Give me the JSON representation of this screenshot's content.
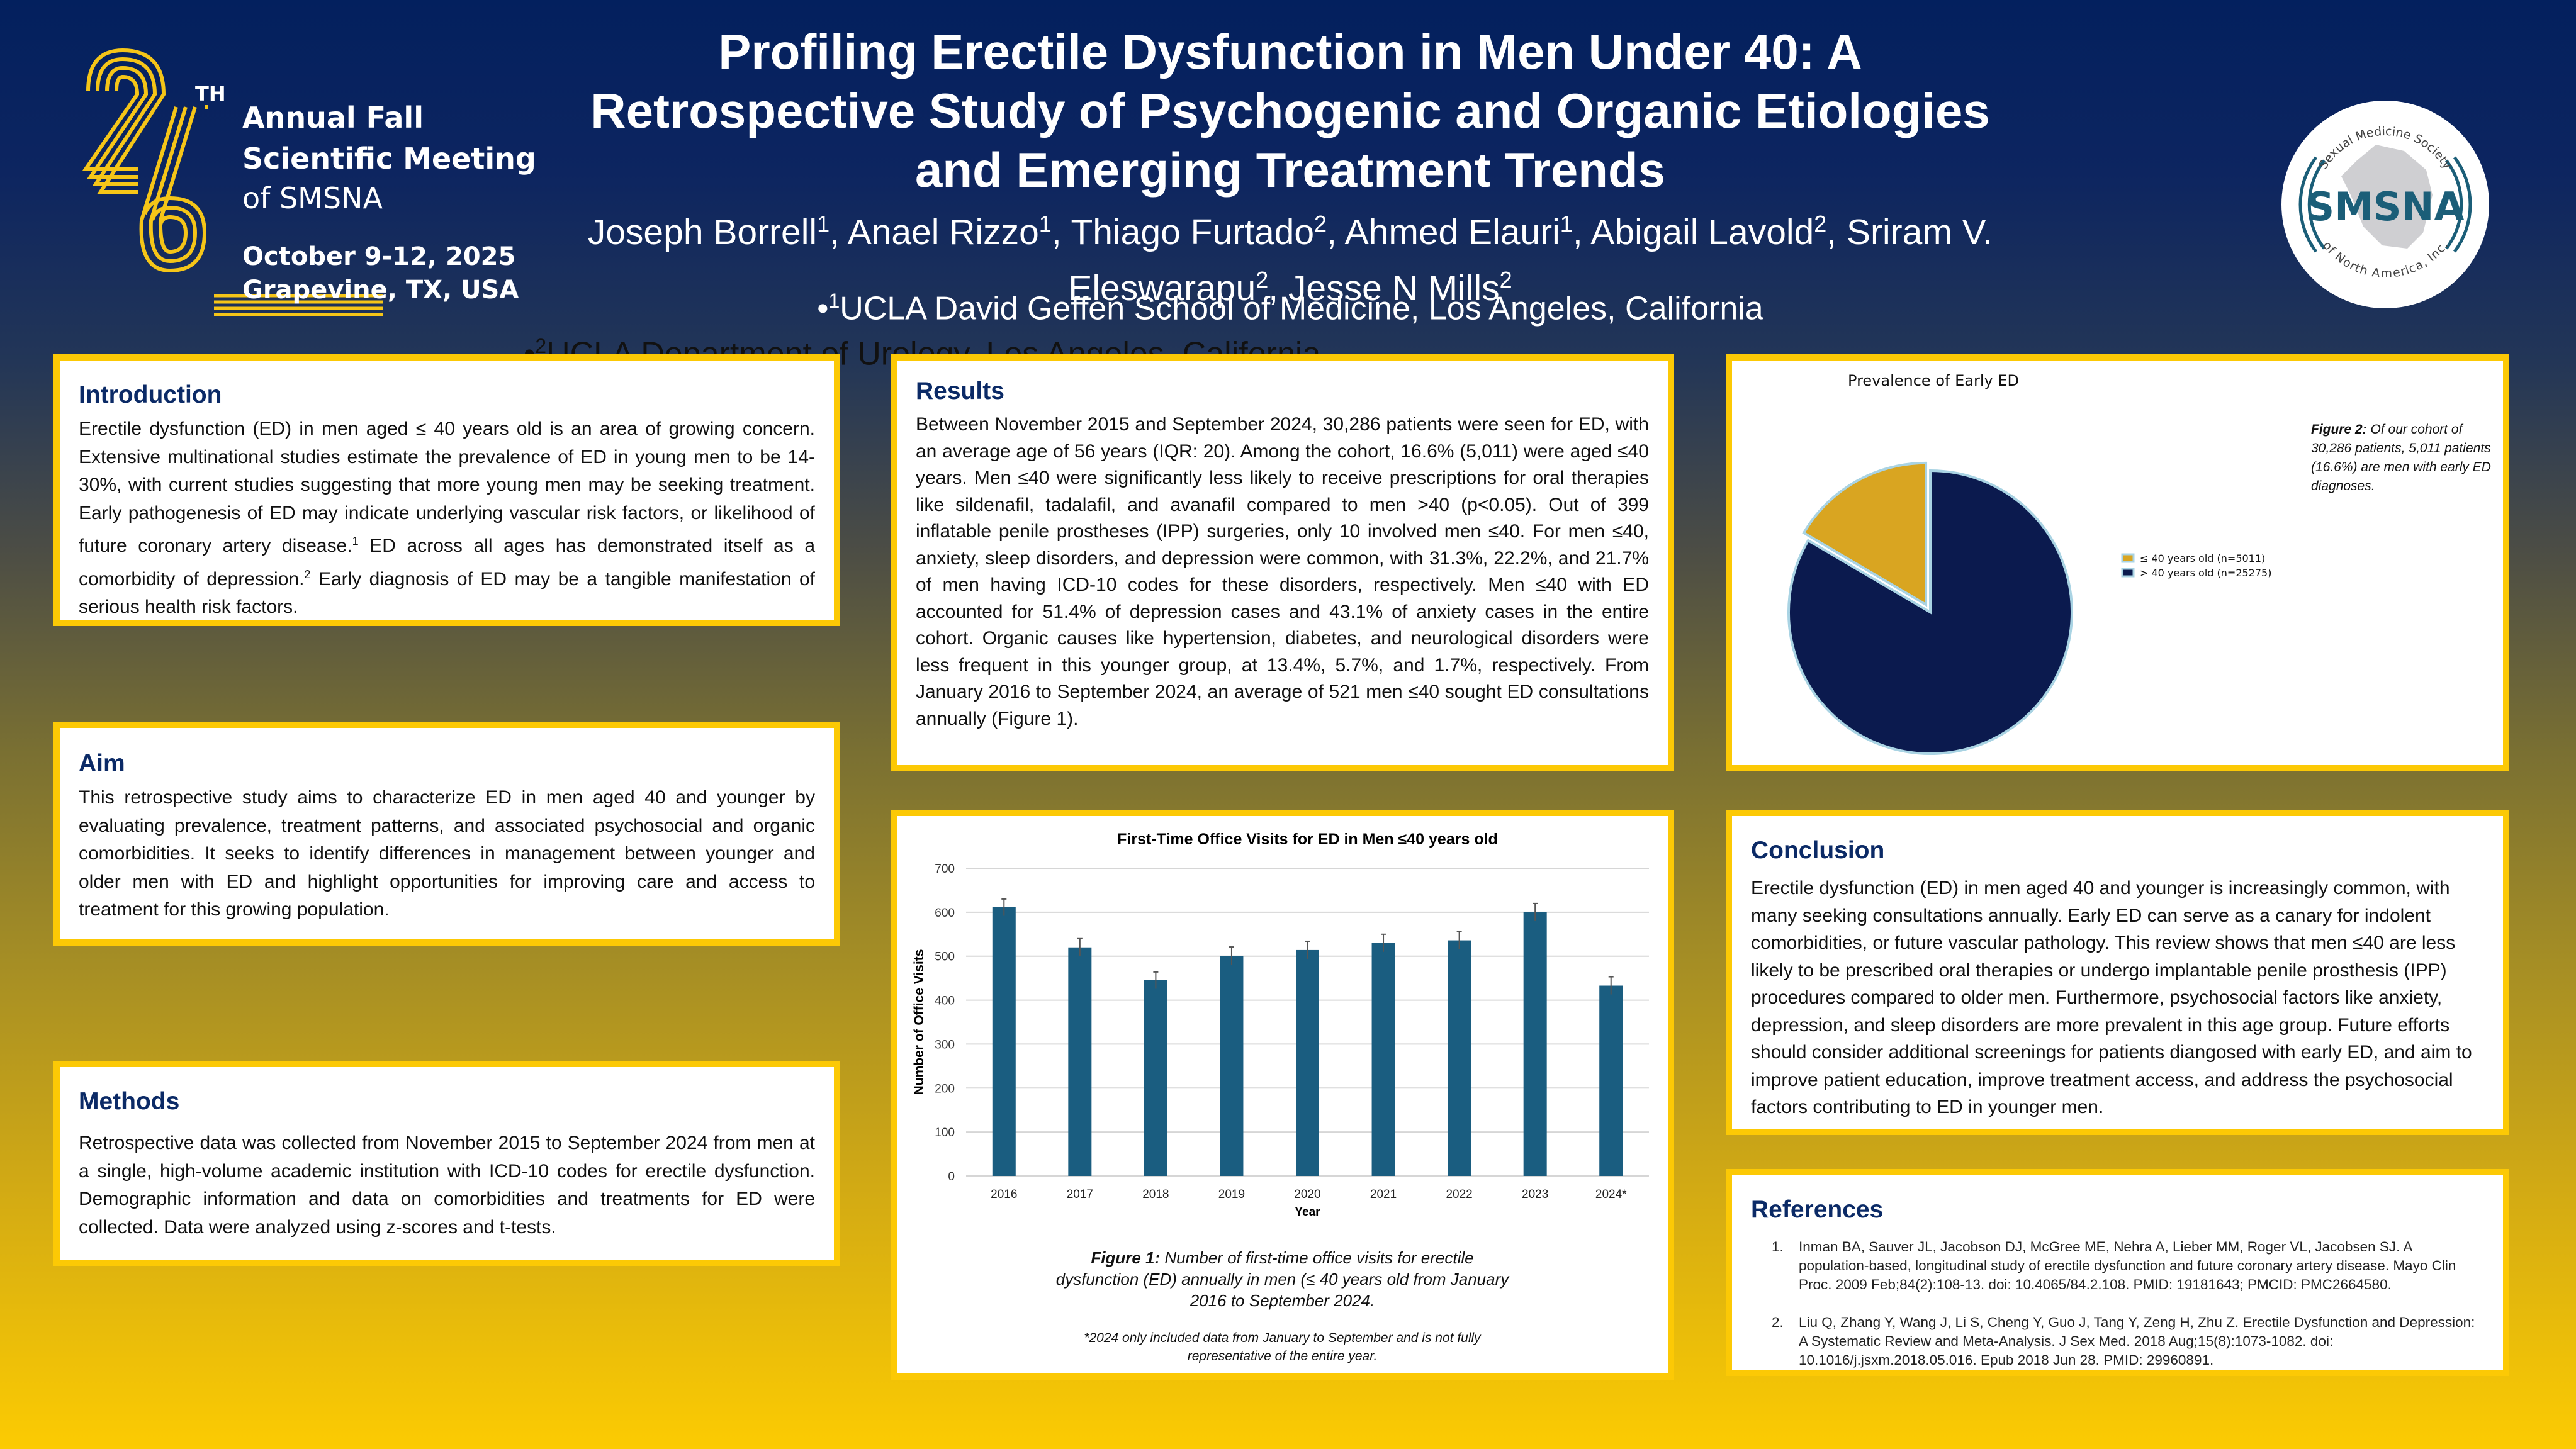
{
  "conference": {
    "number": "26",
    "ordinal_suffix": "TH",
    "line1": "Annual Fall",
    "line2": "Scientific Meeting",
    "line3": "of SMSNA",
    "dates": "October 9-12, 2025",
    "location": "Grapevine, TX, USA",
    "accent_color": "#f5c518"
  },
  "header": {
    "title": "Profiling Erectile Dysfunction in Men Under 40: A Retrospective Study of Psychogenic and Organic Etiologies and Emerging Treatment Trends",
    "authors": [
      {
        "name": "Joseph Borrell",
        "aff": "1"
      },
      {
        "name": "Anael Rizzo",
        "aff": "1"
      },
      {
        "name": "Thiago Furtado",
        "aff": "2"
      },
      {
        "name": "Ahmed Elauri",
        "aff": "1"
      },
      {
        "name": "Abigail Lavold",
        "aff": "2"
      },
      {
        "name": "Sriram V. Eleswarapu",
        "aff": "2"
      },
      {
        "name": "Jesse N Mills",
        "aff": "2"
      }
    ],
    "affiliation1": {
      "marker": "1",
      "text": "UCLA David Geffen School of Medicine, Los Angeles, California"
    },
    "affiliation2": {
      "marker": "2",
      "text": "UCLA Department of Urology, Los Angeles, California"
    }
  },
  "society_logo": {
    "arc_top": "Sexual Medicine Society",
    "abbr": "SMSNA",
    "arc_bottom": "of North America, Inc.",
    "color": "#1b5e78"
  },
  "sections": {
    "introduction": {
      "heading": "Introduction",
      "text_a": "Erectile dysfunction (ED) in men aged ≤ 40 years old is an area of growing concern. Extensive multinational studies estimate the prevalence of ED in young men to be 14-30%, with current studies suggesting that more young men may be seeking treatment. Early pathogenesis of ED may indicate underlying vascular risk factors, or likelihood of future coronary artery disease.",
      "ref_a": "1",
      "text_b": "  ED across all ages has demonstrated itself as a comorbidity of depression.",
      "ref_b": "2",
      "text_c": " Early diagnosis of ED may be a tangible manifestation of serious health risk factors."
    },
    "aim": {
      "heading": "Aim",
      "text": "This retrospective study aims to characterize ED in men aged 40 and younger by evaluating prevalence, treatment patterns, and associated psychosocial and organic comorbidities. It seeks to identify differences in management between younger and older men with ED and highlight opportunities for improving care and access to treatment for this growing population."
    },
    "methods": {
      "heading": "Methods",
      "text": "Retrospective data was collected from November 2015 to September 2024 from men at a single, high-volume academic institution with ICD-10 codes for erectile dysfunction. Demographic information and data on comorbidities and treatments for ED were collected. Data were analyzed using z-scores and t-tests."
    },
    "results": {
      "heading": "Results",
      "text": "Between November 2015 and September 2024, 30,286 patients were seen for ED, with an average age of 56 years (IQR: 20). Among the cohort, 16.6% (5,011) were aged ≤40 years. Men ≤40 were significantly less likely to receive prescriptions for oral therapies like sildenafil, tadalafil, and avanafil compared to men >40 (p<0.05). Out of 399 inflatable penile prostheses (IPP) surgeries, only 10 involved men ≤40. For men ≤40, anxiety, sleep disorders, and depression were common, with 31.3%, 22.2%, and 21.7% of men having ICD-10 codes for these disorders, respectively. Men ≤40 with ED accounted for 51.4% of depression cases and 43.1% of anxiety cases in the entire cohort. Organic causes like hypertension, diabetes, and neurological disorders were less frequent in this younger group, at 13.4%, 5.7%, and 1.7%, respectively. From January 2016 to September 2024, an average of 521 men ≤40 sought ED consultations annually (Figure 1)."
    },
    "conclusion": {
      "heading": "Conclusion",
      "text": "Erectile dysfunction (ED) in men aged 40 and younger is increasingly common, with many seeking consultations annually. Early ED can serve as a canary for indolent comorbidities, or future vascular pathology. This review shows that men ≤40 are less likely to be prescribed oral therapies or undergo implantable penile prosthesis (IPP) procedures compared to older men. Furthermore, psychosocial factors like anxiety, depression, and sleep disorders are more prevalent in this age group. Future efforts should consider additional screenings for patients diangosed with early ED, and aim to improve patient education, improve treatment access, and address the psychosocial factors contributing to ED in younger men."
    },
    "references": {
      "heading": "References",
      "items": [
        "Inman BA, Sauver JL, Jacobson DJ, McGree ME, Nehra A, Lieber MM, Roger VL, Jacobsen SJ. A population-based, longitudinal study of erectile dysfunction and future coronary artery disease. Mayo Clin Proc. 2009 Feb;84(2):108-13. doi: 10.4065/84.2.108. PMID: 19181643; PMCID: PMC2664580.",
        "Liu Q, Zhang Y, Wang J, Li S, Cheng Y, Guo J, Tang Y, Zeng H, Zhu Z. Erectile Dysfunction and Depression: A Systematic Review and Meta-Analysis. J Sex Med. 2018 Aug;15(8):1073-1082. doi: 10.1016/j.jsxm.2018.05.016. Epub 2018 Jun 28. PMID: 29960891."
      ]
    }
  },
  "figure1_caption": {
    "label": "Figure 1:",
    "text": " Number of first-time office visits for erectile dysfunction (ED) annually in men (≤ 40 years old from January 2016 to September 2024.",
    "footnote": "*2024 only included data from January to September and is not fully representative of the entire year."
  },
  "figure2_caption": {
    "label": "Figure 2:",
    "text": " Of our cohort of 30,286 patients, 5,011 patients (16.6%) are men with early ED diagnoses."
  },
  "chart_data": [
    {
      "type": "bar",
      "title": "First-Time Office Visits for ED in Men ≤40 years old",
      "xlabel": "Year",
      "ylabel": "Number of Office Visits",
      "categories": [
        "2016",
        "2017",
        "2018",
        "2019",
        "2020",
        "2021",
        "2022",
        "2023",
        "2024*"
      ],
      "values": [
        612,
        520,
        446,
        501,
        514,
        530,
        536,
        600,
        433
      ],
      "error_upper": [
        18,
        20,
        18,
        20,
        20,
        20,
        20,
        20,
        20
      ],
      "ylim": [
        0,
        700
      ],
      "yticks": [
        0,
        100,
        200,
        300,
        400,
        500,
        600,
        700
      ],
      "grid": true,
      "bar_color": "#1a5d80"
    },
    {
      "type": "pie",
      "title": "Prevalence of Early ED",
      "slices": [
        {
          "label": "≤ 40 years old (n=5011)",
          "value": 5011,
          "color": "#d9a521",
          "exploded": true
        },
        {
          "label": "> 40 years old (n=25275)",
          "value": 25275,
          "color": "#0b1a4e",
          "exploded": false
        }
      ],
      "legend_position": "right"
    }
  ]
}
